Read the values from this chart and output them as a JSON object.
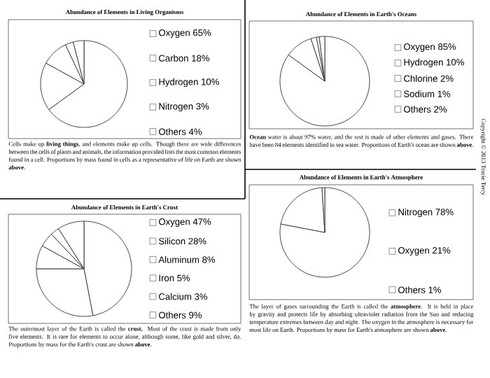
{
  "chart_data": [
    {
      "type": "pie",
      "title": "Abundance of Elements in Living Organisms",
      "categories": [
        "Oxygen",
        "Carbon",
        "Hydrogen",
        "Nitrogen",
        "Others"
      ],
      "values": [
        65,
        18,
        10,
        3,
        4
      ],
      "value_labels": [
        "65%",
        "18%",
        "10%",
        "3%",
        "4%"
      ],
      "colors": [
        "#ffffff",
        "#ffffff",
        "#ffffff",
        "#ffffff",
        "#ffffff"
      ],
      "legend": "right",
      "annotations": [
        "Cells make up **living things**, and elements make up cells. Though there are wide differences between the cells of plants and animals, the information provided lists the most common elements found in a cell. Proportions by mass found in cells as a representative of life on Earth are shown **above**."
      ]
    },
    {
      "type": "pie",
      "title": "Abundance of Elements in Earth's Oceans",
      "categories": [
        "Oxygen",
        "Hydrogen",
        "Chlorine",
        "Sodium",
        "Others"
      ],
      "values": [
        85,
        10,
        2,
        1,
        2
      ],
      "value_labels": [
        "85%",
        "10%",
        "2%",
        "1%",
        "2%"
      ],
      "colors": [
        "#ffffff",
        "#ffffff",
        "#ffffff",
        "#ffffff",
        "#ffffff"
      ],
      "legend": "right",
      "annotations": [
        "**Ocean** water is about 97% water, and the rest is made of other elements and gases. There have been 84 elements identified in sea water. Proportions of Earth's ocean are shown **above**.",
        "Copyright © 2013 Tracie Terry"
      ]
    },
    {
      "type": "pie",
      "title": "Abundance of Elements in Earth's Crust",
      "categories": [
        "Oxygen",
        "Silicon",
        "Aluminum",
        "Iron",
        "Calcium",
        "Others"
      ],
      "values": [
        47,
        28,
        8,
        5,
        3,
        9
      ],
      "value_labels": [
        "47%",
        "28%",
        "8%",
        "5%",
        "3%",
        "9%"
      ],
      "colors": [
        "#ffffff",
        "#ffffff",
        "#ffffff",
        "#ffffff",
        "#ffffff",
        "#ffffff"
      ],
      "legend": "right",
      "annotations": [
        "The outermost layer of the Earth is called the **crust.** Most of the crust is made from only five elements. It is rare for elements to occur alone, although some, like gold and silver, do. Proportions by mass for the Earth's crust are shown **above**."
      ]
    },
    {
      "type": "pie",
      "title": "Abundance of Elements in Earth's Atmosphere",
      "categories": [
        "Nitrogen",
        "Oxygen",
        "Others"
      ],
      "values": [
        78,
        21,
        1
      ],
      "value_labels": [
        "78%",
        "21%",
        "1%"
      ],
      "colors": [
        "#ffffff",
        "#ffffff",
        "#ffffff"
      ],
      "legend": "right",
      "annotations": [
        "The layer of gases surrounding the Earth is called the **atmosphere**. It is held in place by gravity and protects life by absorbing ultraviolet radiation from the Sun and reducing temperature extremes between day and night. The oxygen in the atmosphere is necessary for most life on Earth. Proportions by mass for Earth's atmosphere are shown **above**."
      ]
    }
  ]
}
